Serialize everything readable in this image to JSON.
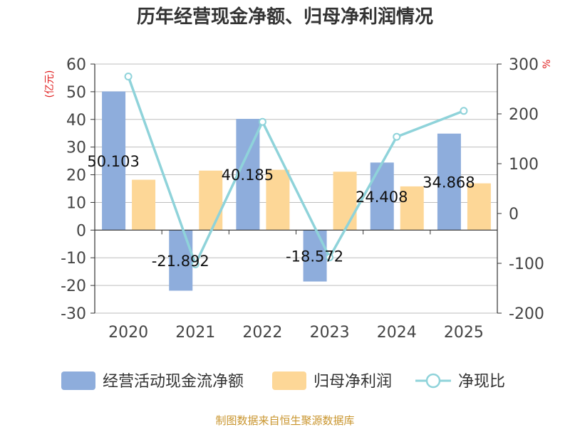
{
  "title": "历年经营现金净额、归母净利润情况",
  "source": "制图数据来自恒生聚源数据库",
  "colors": {
    "cash": "#8eaddc",
    "profit": "#fdd797",
    "ratio": "#8fd3da",
    "unit": "#e02020",
    "grid": "#bdbdbd",
    "axis": "#333333",
    "source": "#c9952e"
  },
  "chart_data": {
    "type": "bar+line",
    "title": "历年经营现金净额、归母净利润情况",
    "categories": [
      "2020",
      "2021",
      "2022",
      "2023",
      "2024",
      "2025"
    ],
    "series": [
      {
        "name": "经营活动现金流净额",
        "type": "bar",
        "axis": "left",
        "values": [
          50.103,
          -21.892,
          40.185,
          -18.572,
          24.408,
          34.868
        ],
        "labels": [
          "50.103",
          "-21.892",
          "40.185",
          "-18.572",
          "24.408",
          "34.868"
        ]
      },
      {
        "name": "归母净利润",
        "type": "bar",
        "axis": "left",
        "values": [
          18.2,
          21.5,
          21.8,
          21.1,
          15.8,
          16.9
        ]
      },
      {
        "name": "净现比",
        "type": "line",
        "axis": "right",
        "values": [
          275,
          -102,
          184,
          -88,
          154,
          206
        ]
      }
    ],
    "left_axis": {
      "label": "(亿元)",
      "min": -30,
      "max": 60,
      "step": 10,
      "ticks": [
        "60",
        "50",
        "40",
        "30",
        "20",
        "10",
        "0",
        "-10",
        "-20",
        "-30"
      ]
    },
    "right_axis": {
      "label": "%",
      "min": -200,
      "max": 300,
      "step": 100,
      "ticks": [
        "300",
        "200",
        "100",
        "0",
        "-100",
        "-200"
      ]
    },
    "grid": true,
    "legend_position": "bottom"
  }
}
